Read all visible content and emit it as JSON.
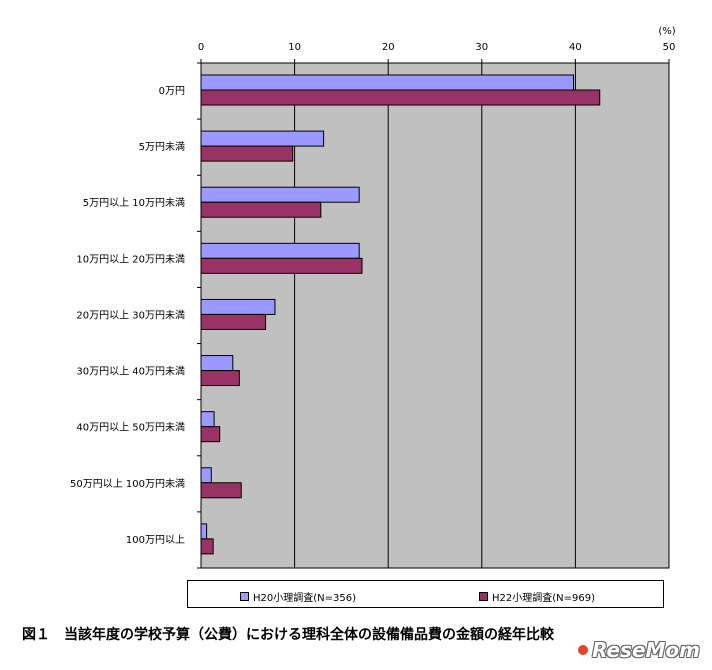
{
  "chart_data": {
    "type": "bar",
    "orientation": "horizontal",
    "unit_label": "(%)",
    "xlim": [
      0,
      50
    ],
    "x_ticks": [
      "0",
      "10",
      "20",
      "30",
      "40",
      "50"
    ],
    "categories": [
      "0万円",
      "5万円未満",
      "5万円以上 10万円未満",
      "10万円以上 20万円未満",
      "20万円以上 30万円未満",
      "30万円以上 40万円未満",
      "40万円以上 50万円未満",
      "50万円以上 100万円未満",
      "100万円以上"
    ],
    "series": [
      {
        "name": "H20小理調査(N=356)",
        "color": "#9999ff",
        "values": [
          39.8,
          13.1,
          16.9,
          16.9,
          7.9,
          3.4,
          1.4,
          1.1,
          0.6
        ]
      },
      {
        "name": "H22小理調査(N=969)",
        "color": "#993366",
        "values": [
          42.6,
          9.8,
          12.8,
          17.2,
          6.9,
          4.1,
          2.0,
          4.3,
          1.3
        ]
      }
    ],
    "grid": true,
    "plot_background": "#c0c0c0",
    "legend_position": "bottom"
  },
  "caption": "図１　当該年度の学校予算（公費）における理科全体の設備備品費の金額の経年比較",
  "watermark": "ReseMom"
}
